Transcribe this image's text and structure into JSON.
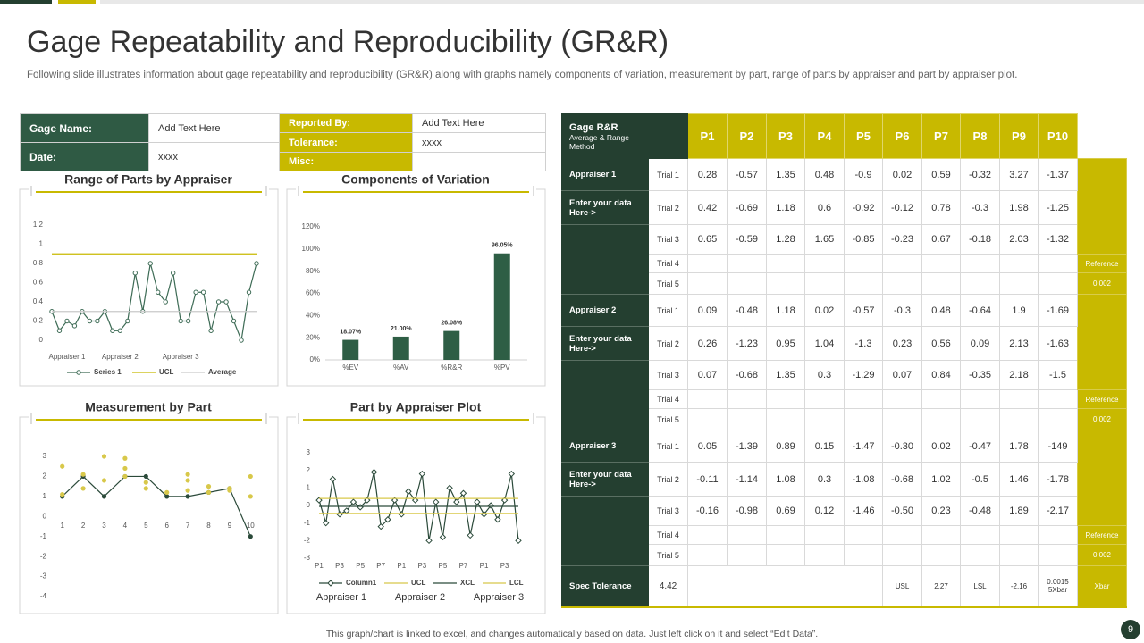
{
  "header": {
    "title": "Gage Repeatability and Reproducibility (GR&R)",
    "subtitle": "Following slide illustrates information about gage repeatability and reproducibility (GR&R) along with graphs namely components of variation, measurement by part, range of parts by appraiser and part by appraiser plot."
  },
  "info": {
    "left": [
      [
        "Gage Name:",
        "Add Text Here"
      ],
      [
        "Date:",
        "xxxx"
      ]
    ],
    "right": [
      [
        "Reported By:",
        "Add Text Here"
      ],
      [
        "Tolerance:",
        "xxxx"
      ],
      [
        "Misc:"
      ]
    ]
  },
  "chart_data": [
    {
      "type": "line",
      "title": "Range of Parts by Appraiser",
      "categories": [
        null,
        null,
        "Appraiser  1",
        null,
        null,
        null,
        null,
        null,
        null,
        "Appraiser  2",
        null,
        null,
        null,
        null,
        null,
        null,
        null,
        "Appraiser  3",
        null,
        null,
        null,
        null,
        null,
        null,
        null,
        null,
        null,
        null
      ],
      "series": [
        {
          "name": "Series 1",
          "color": "#3d6b55",
          "marker": "circle",
          "values": [
            0.3,
            0.1,
            0.2,
            0.15,
            0.3,
            0.2,
            0.2,
            0.3,
            0.1,
            0.1,
            0.2,
            0.7,
            0.3,
            0.8,
            0.5,
            0.4,
            0.7,
            0.2,
            0.2,
            0.5,
            0.5,
            0.1,
            0.4,
            0.4,
            0.2,
            0,
            0.5,
            0.8
          ]
        },
        {
          "name": "UCL",
          "color": "#c8b900",
          "values": [
            0.9,
            0.9,
            0.9,
            0.9,
            0.9,
            0.9,
            0.9,
            0.9,
            0.9,
            0.9,
            0.9,
            0.9,
            0.9,
            0.9,
            0.9,
            0.9,
            0.9,
            0.9,
            0.9,
            0.9,
            0.9,
            0.9,
            0.9,
            0.9,
            0.9,
            0.9,
            0.9,
            0.9
          ]
        },
        {
          "name": "Average",
          "color": "#c9c9c9",
          "values": [
            0.3,
            0.3,
            0.3,
            0.3,
            0.3,
            0.3,
            0.3,
            0.3,
            0.3,
            0.3,
            0.3,
            0.3,
            0.3,
            0.3,
            0.3,
            0.3,
            0.3,
            0.3,
            0.3,
            0.3,
            0.3,
            0.3,
            0.3,
            0.3,
            0.3,
            0.3,
            0.3,
            0.3
          ]
        }
      ],
      "ylim": [
        0,
        1.2
      ],
      "yticks": [
        0,
        0.2,
        0.4,
        0.6,
        0.8,
        1,
        1.2
      ]
    },
    {
      "type": "bar",
      "title": "Components of Variation",
      "categories": [
        "%EV",
        "%AV",
        "%R&R",
        "%PV"
      ],
      "values": [
        18.07,
        21.0,
        26.08,
        96.05
      ],
      "value_labels": [
        "18.07%",
        "21.00%",
        "26.08%",
        "96.05%"
      ],
      "color": "#2e5e45",
      "ylim": [
        0,
        120
      ],
      "yticks": [
        {
          "value": 0,
          "label": "0%"
        },
        {
          "value": 20,
          "label": "20%"
        },
        {
          "value": 40,
          "label": "40%"
        },
        {
          "value": 60,
          "label": "60%"
        },
        {
          "value": 80,
          "label": "80%"
        },
        {
          "value": 100,
          "label": "100%"
        },
        {
          "value": 120,
          "label": "120%"
        }
      ]
    },
    {
      "type": "line",
      "title": "Measurement by Part",
      "series": [
        {
          "color": "#2b4a3a",
          "marker": "dot",
          "x": [
            1,
            2,
            3,
            4,
            5,
            6,
            7,
            8,
            9,
            10
          ],
          "values": [
            1.0,
            2.0,
            1.0,
            2.0,
            2.0,
            1.0,
            1.0,
            1.2,
            1.4,
            -1.0
          ]
        },
        {
          "color": "#d8c84a",
          "marker": "dot",
          "mode": "markers",
          "x": [
            1,
            1,
            2,
            2,
            3,
            3,
            4,
            4,
            4,
            5,
            5,
            6,
            7,
            7,
            7,
            8,
            8,
            9,
            9,
            10,
            10
          ],
          "values": [
            2.5,
            1.1,
            2.1,
            1.4,
            3.0,
            1.8,
            2.9,
            2.4,
            2.0,
            1.7,
            1.4,
            1.2,
            2.1,
            1.8,
            1.3,
            1.5,
            1.2,
            1.4,
            1.3,
            2.0,
            1.0
          ]
        }
      ],
      "xlim": [
        0.5,
        10.5
      ],
      "xticks": [
        1,
        2,
        3,
        4,
        5,
        6,
        7,
        8,
        9,
        10
      ],
      "ylim": [
        -4,
        3
      ],
      "yticks": [
        -4,
        -3,
        -2,
        -1,
        0,
        1,
        2,
        3
      ]
    },
    {
      "type": "line",
      "title": "Part by Appraiser Plot",
      "categories": [
        "P1",
        null,
        null,
        "P3",
        null,
        null,
        "P5",
        null,
        null,
        "P7",
        null,
        null,
        "P1",
        null,
        null,
        "P3",
        null,
        null,
        "P5",
        null,
        null,
        "P7",
        null,
        null,
        "P1",
        null,
        null,
        "P3",
        null,
        null
      ],
      "group_labels": [
        "Appraiser 1",
        "Appraiser 2",
        "Appraiser 3"
      ],
      "series": [
        {
          "name": "Column1",
          "color": "#2b4a3a",
          "marker": "diamond",
          "values": [
            0.3,
            -1,
            1.5,
            -0.5,
            -0.3,
            0.2,
            -0.1,
            0.3,
            1.9,
            -1.2,
            -0.8,
            0.3,
            -0.5,
            0.8,
            0.3,
            1.8,
            -2,
            0.2,
            -1.8,
            1,
            0.2,
            0.7,
            -1.7,
            0.2,
            -0.5,
            0,
            -0.8,
            0.3,
            1.8,
            -2
          ]
        },
        {
          "name": "UCL",
          "color": "#d8c84a",
          "values": [
            0.4,
            0.4,
            0.4,
            0.4,
            0.4,
            0.4,
            0.4,
            0.4,
            0.4,
            0.4,
            0.4,
            0.4,
            0.4,
            0.4,
            0.4,
            0.4,
            0.4,
            0.4,
            0.4,
            0.4,
            0.4,
            0.4,
            0.4,
            0.4,
            0.4,
            0.4,
            0.4,
            0.4,
            0.4,
            0.4
          ]
        },
        {
          "name": "XCL",
          "color": "#2b4a3a",
          "values": [
            -0.05,
            -0.05,
            -0.05,
            -0.05,
            -0.05,
            -0.05,
            -0.05,
            -0.05,
            -0.05,
            -0.05,
            -0.05,
            -0.05,
            -0.05,
            -0.05,
            -0.05,
            -0.05,
            -0.05,
            -0.05,
            -0.05,
            -0.05,
            -0.05,
            -0.05,
            -0.05,
            -0.05,
            -0.05,
            -0.05,
            -0.05,
            -0.05,
            -0.05,
            -0.05
          ]
        },
        {
          "name": "LCL",
          "color": "#d8c84a",
          "values": [
            -0.45,
            -0.45,
            -0.45,
            -0.45,
            -0.45,
            -0.45,
            -0.45,
            -0.45,
            -0.45,
            -0.45,
            -0.45,
            -0.45,
            -0.45,
            -0.45,
            -0.45,
            -0.45,
            -0.45,
            -0.45,
            -0.45,
            -0.45,
            -0.45,
            -0.45,
            -0.45,
            -0.45,
            -0.45,
            -0.45,
            -0.45,
            -0.45,
            -0.45,
            -0.45
          ]
        }
      ],
      "ylim": [
        -3,
        3
      ],
      "yticks": [
        -3,
        -2,
        -1,
        0,
        1,
        2,
        3
      ]
    }
  ],
  "grr_table": {
    "corner_title": "Gage R&R",
    "corner_subtitle": "Average & Range Method",
    "columns": [
      "P1",
      "P2",
      "P3",
      "P4",
      "P5",
      "P6",
      "P7",
      "P8",
      "P9",
      "P10"
    ],
    "appraisers": [
      {
        "name": "Appraiser 1",
        "note": "Enter your data Here->",
        "trials": [
          {
            "trial": "Trial 1",
            "values": [
              "0.28",
              "-0.57",
              "1.35",
              "0.48",
              "-0.9",
              "0.02",
              "0.59",
              "-0.32",
              "3.27",
              "-1.37"
            ]
          },
          {
            "trial": "Trial 2",
            "values": [
              "0.42",
              "-0.69",
              "1.18",
              "0.6",
              "-0.92",
              "-0.12",
              "0.78",
              "-0.3",
              "1.98",
              "-1.25"
            ]
          },
          {
            "trial": "Trial 3",
            "values": [
              "0.65",
              "-0.59",
              "1.28",
              "1.65",
              "-0.85",
              "-0.23",
              "0.67",
              "-0.18",
              "2.03",
              "-1.32"
            ]
          },
          {
            "trial": "Trial 4",
            "ref": "Reference"
          },
          {
            "trial": "Trial 5",
            "ref": "0.002"
          }
        ]
      },
      {
        "name": "Appraiser 2",
        "note": "Enter your data Here->",
        "trials": [
          {
            "trial": "Trial 1",
            "values": [
              "0.09",
              "-0.48",
              "1.18",
              "0.02",
              "-0.57",
              "-0.3",
              "0.48",
              "-0.64",
              "1.9",
              "-1.69"
            ]
          },
          {
            "trial": "Trial 2",
            "values": [
              "0.26",
              "-1.23",
              "0.95",
              "1.04",
              "-1.3",
              "0.23",
              "0.56",
              "0.09",
              "2.13",
              "-1.63"
            ]
          },
          {
            "trial": "Trial 3",
            "values": [
              "0.07",
              "-0.68",
              "1.35",
              "0.3",
              "-1.29",
              "0.07",
              "0.84",
              "-0.35",
              "2.18",
              "-1.5"
            ]
          },
          {
            "trial": "Trial 4",
            "ref": "Reference"
          },
          {
            "trial": "Trial 5",
            "ref": "0.002"
          }
        ]
      },
      {
        "name": "Appraiser 3",
        "note": "Enter your data Here->",
        "trials": [
          {
            "trial": "Trial 1",
            "values": [
              "0.05",
              "-1.39",
              "0.89",
              "0.15",
              "-1.47",
              "-0.30",
              "0.02",
              "-0.47",
              "1.78",
              "-149"
            ]
          },
          {
            "trial": "Trial 2",
            "values": [
              "-0.11",
              "-1.14",
              "1.08",
              "0.3",
              "-1.08",
              "-0.68",
              "1.02",
              "-0.5",
              "1.46",
              "-1.78"
            ]
          },
          {
            "trial": "Trial 3",
            "values": [
              "-0.16",
              "-0.98",
              "0.69",
              "0.12",
              "-1.46",
              "-0.50",
              "0.23",
              "-0.48",
              "1.89",
              "-2.17"
            ]
          },
          {
            "trial": "Trial 4",
            "ref": "Reference"
          },
          {
            "trial": "Trial 5",
            "ref": "0.002"
          }
        ]
      }
    ],
    "spec": {
      "label": "Spec Tolerance",
      "tolerance": "4.42",
      "usl_label": "USL",
      "usl": "2.27",
      "lsl_label": "LSL",
      "lsl": "-2.16",
      "xbar_value": "0.0015",
      "xbar_note": "5Xbar",
      "xbar_label": "Xbar"
    }
  },
  "footer": {
    "note": "This graph/chart is linked to excel, and changes automatically based on data. Just left click on it and select “Edit Data”.",
    "page": 9
  }
}
